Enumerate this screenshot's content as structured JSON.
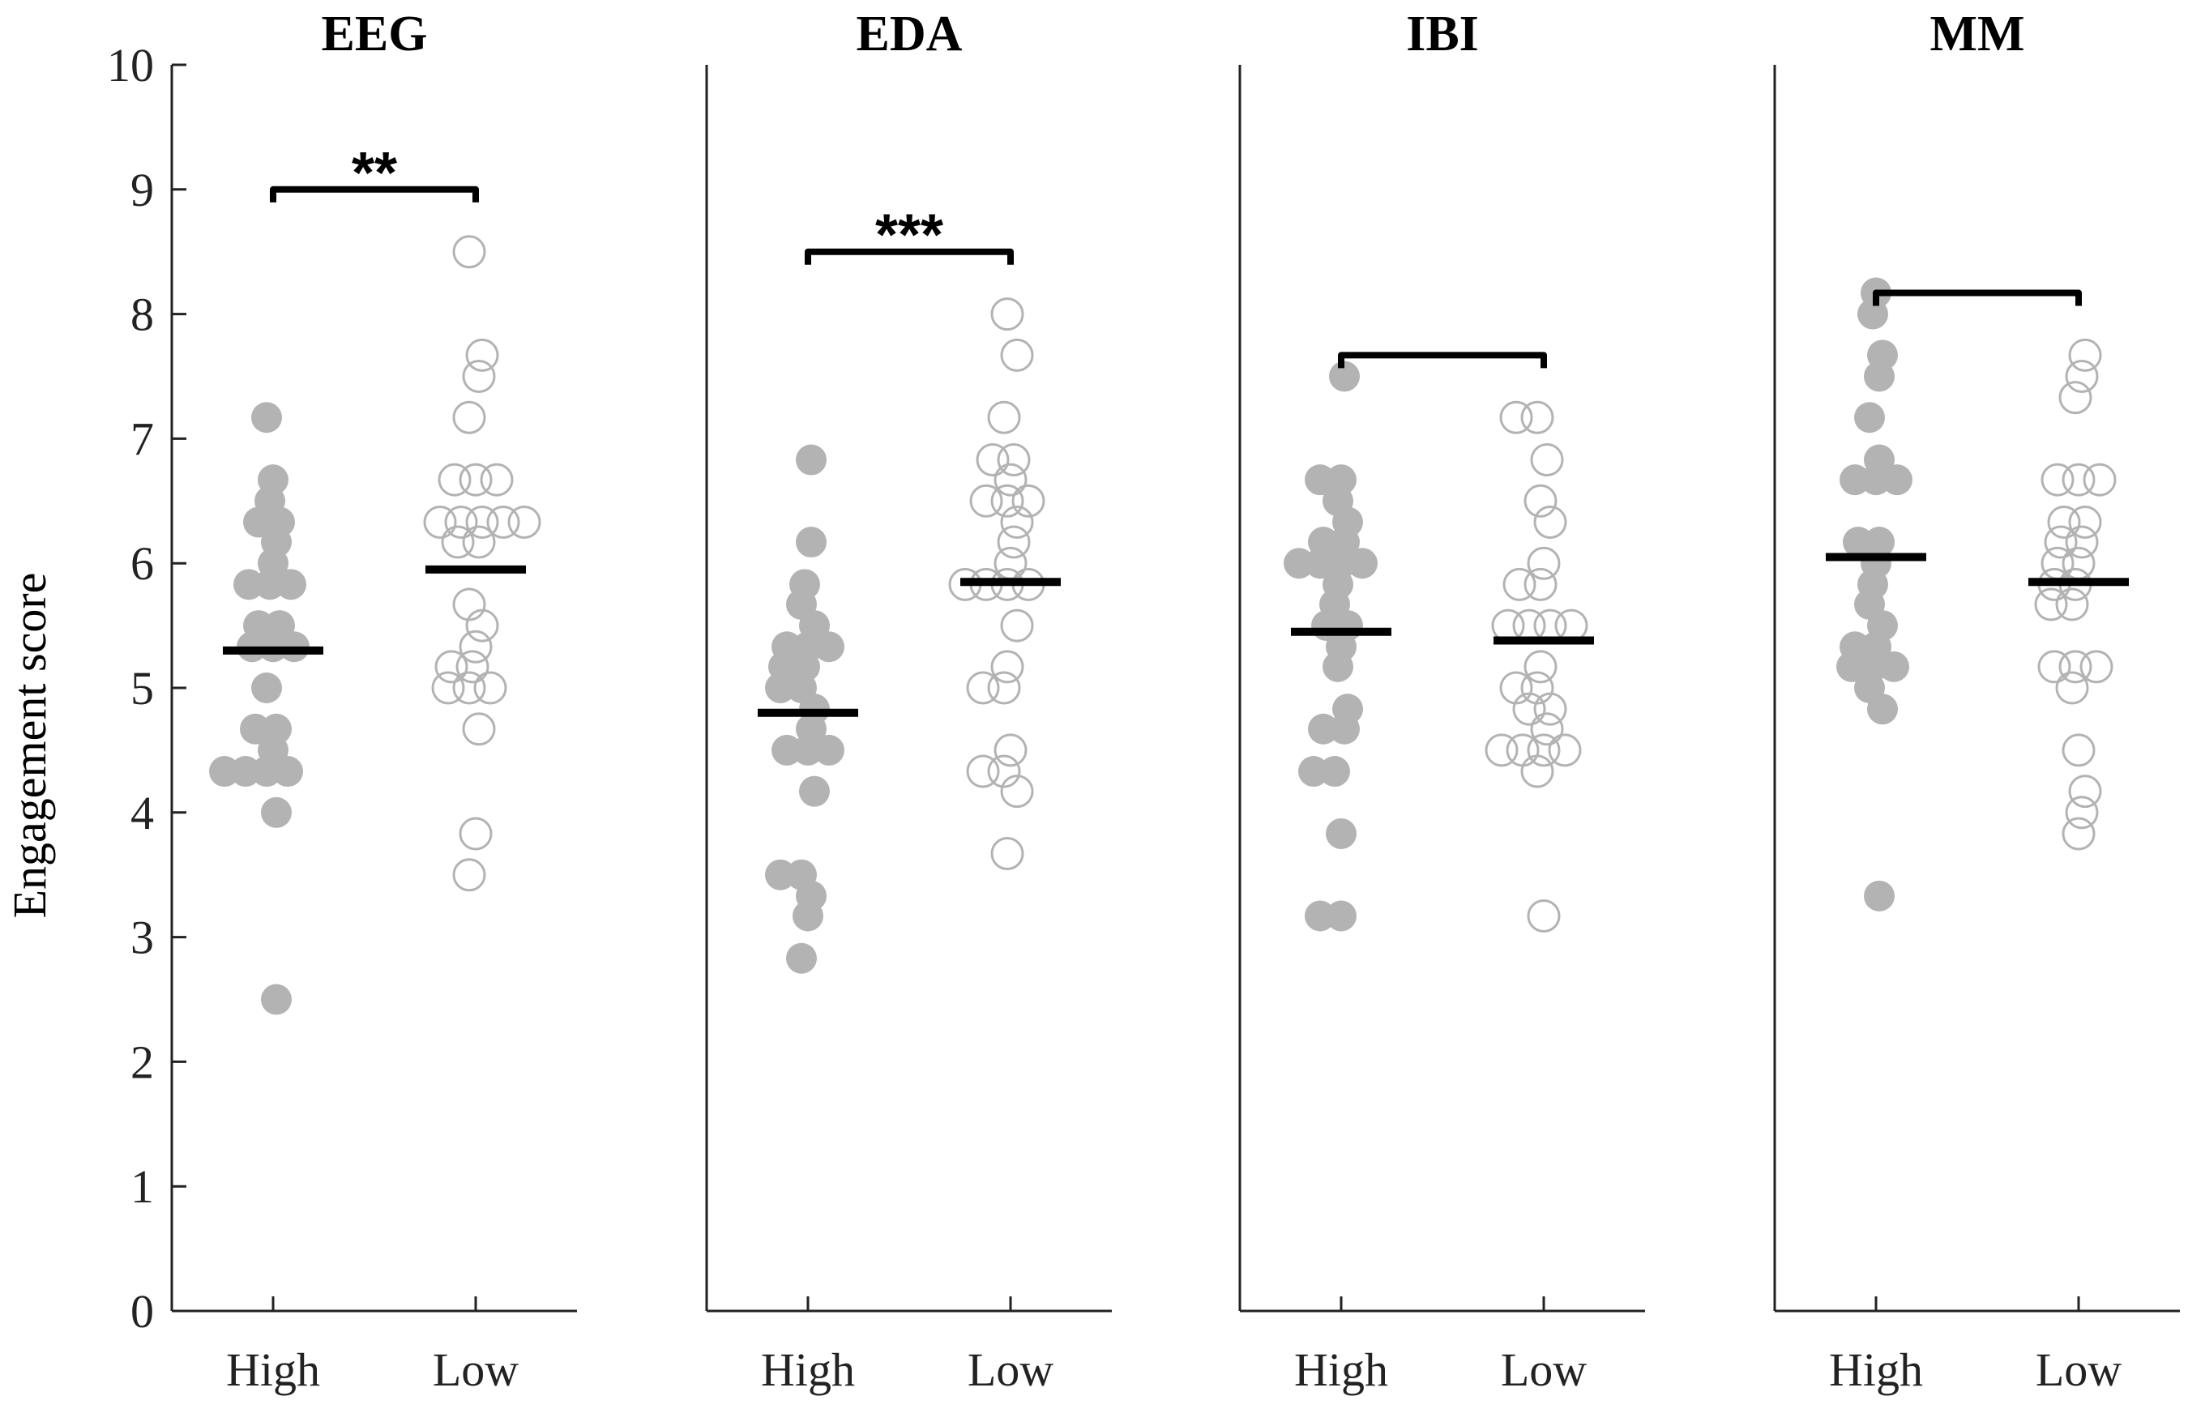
{
  "chart_data": {
    "type": "scatter",
    "ylabel": "Engagement score",
    "ylim": [
      0,
      10
    ],
    "yticks": [
      "0",
      "1",
      "2",
      "3",
      "4",
      "5",
      "6",
      "7",
      "8",
      "9",
      "10"
    ],
    "categories": [
      "High",
      "Low"
    ],
    "colors": {
      "points": "#b3b3b3",
      "mean": "#000000",
      "axis": "#222222"
    },
    "panels": [
      {
        "title": "EEG",
        "significance": "**",
        "high": {
          "mean": 5.3,
          "values": [
            7.17,
            6.67,
            6.5,
            6.33,
            6.33,
            6.17,
            6.0,
            5.83,
            5.83,
            5.83,
            5.5,
            5.5,
            5.33,
            5.33,
            5.33,
            5.0,
            4.67,
            4.67,
            4.5,
            4.33,
            4.33,
            4.33,
            4.33,
            4.0,
            2.5
          ]
        },
        "low": {
          "mean": 5.95,
          "values": [
            8.5,
            7.67,
            7.5,
            7.17,
            6.67,
            6.67,
            6.67,
            6.33,
            6.33,
            6.33,
            6.33,
            6.33,
            6.17,
            6.17,
            5.67,
            5.5,
            5.33,
            5.17,
            5.17,
            5.0,
            5.0,
            5.0,
            4.67,
            3.83,
            3.5
          ]
        }
      },
      {
        "title": "EDA",
        "significance": "***",
        "high": {
          "mean": 4.8,
          "values": [
            6.83,
            6.17,
            5.83,
            5.67,
            5.5,
            5.33,
            5.33,
            5.33,
            5.17,
            5.17,
            5.0,
            5.0,
            4.83,
            4.67,
            4.5,
            4.5,
            4.5,
            4.17,
            3.5,
            3.5,
            3.33,
            3.17,
            2.83
          ]
        },
        "low": {
          "mean": 5.85,
          "values": [
            8.0,
            7.67,
            7.17,
            6.83,
            6.83,
            6.67,
            6.5,
            6.5,
            6.5,
            6.33,
            6.17,
            6.0,
            5.83,
            5.83,
            5.83,
            5.83,
            5.5,
            5.17,
            5.0,
            5.0,
            4.5,
            4.33,
            4.33,
            4.17,
            3.67
          ]
        }
      },
      {
        "title": "IBI",
        "significance": "",
        "high": {
          "mean": 5.45,
          "values": [
            7.5,
            6.67,
            6.67,
            6.5,
            6.33,
            6.17,
            6.17,
            6.0,
            6.0,
            6.0,
            6.0,
            5.83,
            5.67,
            5.5,
            5.5,
            5.33,
            5.17,
            4.83,
            4.67,
            4.67,
            4.33,
            4.33,
            3.83,
            3.17,
            3.17
          ]
        },
        "low": {
          "mean": 5.38,
          "values": [
            7.17,
            7.17,
            6.83,
            6.5,
            6.33,
            6.0,
            5.83,
            5.83,
            5.5,
            5.5,
            5.5,
            5.5,
            5.17,
            5.0,
            5.0,
            4.83,
            4.83,
            4.67,
            4.5,
            4.5,
            4.5,
            4.5,
            4.33,
            3.17
          ]
        }
      },
      {
        "title": "MM",
        "significance": "",
        "high": {
          "mean": 6.05,
          "values": [
            8.17,
            8.0,
            7.67,
            7.5,
            7.17,
            6.83,
            6.67,
            6.67,
            6.67,
            6.17,
            6.17,
            6.0,
            5.83,
            5.67,
            5.5,
            5.33,
            5.33,
            5.17,
            5.17,
            5.17,
            5.0,
            4.83,
            3.33
          ]
        },
        "low": {
          "mean": 5.85,
          "values": [
            7.67,
            7.5,
            7.33,
            6.67,
            6.67,
            6.67,
            6.33,
            6.33,
            6.17,
            6.17,
            6.0,
            6.0,
            5.83,
            5.83,
            5.67,
            5.67,
            5.17,
            5.17,
            5.17,
            5.0,
            4.5,
            4.17,
            4.0,
            3.83
          ]
        }
      }
    ]
  }
}
